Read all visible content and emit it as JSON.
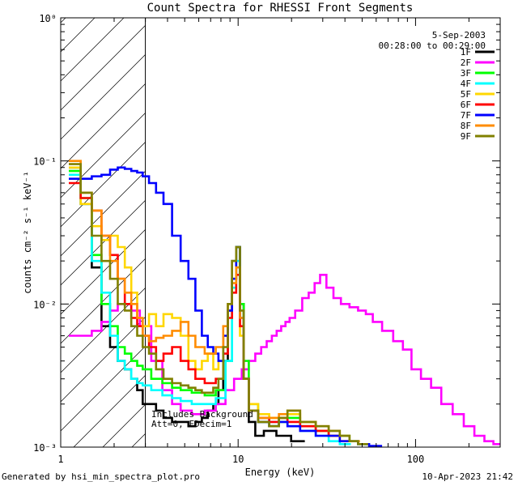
{
  "chart_data": {
    "type": "line",
    "title": "Count Spectra for RHESSI Front Segments",
    "xlabel": "Energy (keV)",
    "ylabel": "counts cm⁻² s⁻¹ keV⁻¹",
    "xscale": "log",
    "yscale": "log",
    "xlim": [
      1,
      300
    ],
    "ylim": [
      0.001,
      1
    ],
    "x_ticks": [
      {
        "value": 1,
        "label": "1"
      },
      {
        "value": 10,
        "label": "10"
      },
      {
        "value": 100,
        "label": "100"
      }
    ],
    "y_ticks": [
      {
        "value": 0.001,
        "label": "10⁻³"
      },
      {
        "value": 0.01,
        "label": "10⁻²"
      },
      {
        "value": 0.1,
        "label": "10⁻¹"
      },
      {
        "value": 1,
        "label": "10⁰"
      }
    ],
    "hatched_region": {
      "x_from": 1,
      "x_to": 3
    },
    "legend_header": [
      "5-Sep-2003",
      "00:28:00 to 00:29:00"
    ],
    "annotation": [
      "Includes Background",
      "Att=0, FDecim=1"
    ],
    "series": [
      {
        "name": "1F",
        "color": "#000000",
        "x": [
          1.2,
          1.4,
          1.6,
          1.8,
          2.0,
          2.2,
          2.4,
          2.6,
          2.8,
          3.0,
          3.3,
          3.6,
          4.0,
          4.5,
          5.0,
          5.5,
          6.0,
          6.5,
          7.0,
          7.5,
          8.0,
          8.5,
          9.0,
          9.5,
          10.0,
          10.5,
          11.0,
          12.0,
          13.0,
          15.0,
          18.0,
          22.0
        ],
        "y": [
          0.09,
          0.05,
          0.018,
          0.007,
          0.005,
          0.004,
          0.0035,
          0.003,
          0.0025,
          0.002,
          0.002,
          0.0018,
          0.0016,
          0.0015,
          0.0015,
          0.0014,
          0.0015,
          0.0016,
          0.0018,
          0.002,
          0.0025,
          0.004,
          0.009,
          0.02,
          0.025,
          0.01,
          0.003,
          0.0015,
          0.0012,
          0.0013,
          0.0012,
          0.0011
        ]
      },
      {
        "name": "2F",
        "color": "#ff00ff",
        "x": [
          1.2,
          1.4,
          1.6,
          1.8,
          2.0,
          2.2,
          2.4,
          2.6,
          3.0,
          3.5,
          4.0,
          4.5,
          5.0,
          6.0,
          7.0,
          8.0,
          9.0,
          10.0,
          11.0,
          12.0,
          13.0,
          14.0,
          15.0,
          16.0,
          17.0,
          18.0,
          19.0,
          20.0,
          22.0,
          24.0,
          26.0,
          28.0,
          30.0,
          33.0,
          36.0,
          40.0,
          45.0,
          50.0,
          55.0,
          60.0,
          70.0,
          80.0,
          90.0,
          100.0,
          115.0,
          130.0,
          150.0,
          175.0,
          200.0,
          230.0,
          260.0,
          290.0
        ],
        "y": [
          0.006,
          0.006,
          0.0065,
          0.0075,
          0.009,
          0.01,
          0.01,
          0.009,
          0.007,
          0.004,
          0.0025,
          0.002,
          0.0018,
          0.0017,
          0.0018,
          0.002,
          0.0025,
          0.003,
          0.0035,
          0.004,
          0.0045,
          0.005,
          0.0055,
          0.006,
          0.0065,
          0.007,
          0.0075,
          0.008,
          0.009,
          0.011,
          0.012,
          0.014,
          0.016,
          0.013,
          0.011,
          0.01,
          0.0095,
          0.009,
          0.0085,
          0.0075,
          0.0065,
          0.0055,
          0.0048,
          0.0035,
          0.003,
          0.0026,
          0.002,
          0.0017,
          0.0014,
          0.0012,
          0.0011,
          0.00105
        ]
      },
      {
        "name": "3F",
        "color": "#00ff00",
        "x": [
          1.2,
          1.4,
          1.6,
          1.8,
          2.0,
          2.2,
          2.4,
          2.6,
          2.8,
          3.0,
          3.5,
          4.0,
          4.5,
          5.0,
          6.0,
          7.0,
          8.0,
          9.0,
          9.5,
          10.0,
          10.5,
          11.0,
          12.0,
          14.0,
          16.0,
          18.0,
          20.0,
          25.0,
          30.0,
          35.0,
          40.0,
          45.0,
          50.0
        ],
        "y": [
          0.085,
          0.055,
          0.022,
          0.01,
          0.007,
          0.005,
          0.0045,
          0.004,
          0.0037,
          0.0035,
          0.003,
          0.0028,
          0.0026,
          0.0025,
          0.0024,
          0.0023,
          0.0025,
          0.004,
          0.015,
          0.025,
          0.01,
          0.004,
          0.002,
          0.0015,
          0.0014,
          0.0015,
          0.0016,
          0.0014,
          0.0013,
          0.0012,
          0.0012,
          0.0011,
          0.00105
        ]
      },
      {
        "name": "4F",
        "color": "#00ffff",
        "x": [
          1.2,
          1.4,
          1.6,
          1.8,
          2.0,
          2.2,
          2.4,
          2.6,
          2.8,
          3.0,
          3.5,
          4.0,
          4.5,
          5.0,
          6.0,
          7.0,
          8.0,
          9.0,
          9.5,
          10.0,
          10.5,
          11.0,
          12.0,
          14.0,
          16.0,
          18.0,
          20.0,
          25.0,
          30.0,
          35.0,
          40.0
        ],
        "y": [
          0.08,
          0.05,
          0.02,
          0.012,
          0.006,
          0.004,
          0.0035,
          0.003,
          0.0028,
          0.0027,
          0.0025,
          0.0023,
          0.0022,
          0.0021,
          0.002,
          0.002,
          0.0022,
          0.004,
          0.013,
          0.02,
          0.008,
          0.003,
          0.0018,
          0.0016,
          0.0015,
          0.0016,
          0.0014,
          0.0013,
          0.0012,
          0.0011,
          0.00105
        ]
      },
      {
        "name": "5F",
        "color": "#ffd700",
        "x": [
          1.2,
          1.4,
          1.6,
          1.8,
          2.0,
          2.2,
          2.4,
          2.6,
          2.8,
          3.0,
          3.3,
          3.6,
          4.0,
          4.5,
          5.0,
          5.5,
          6.0,
          6.5,
          7.0,
          7.5,
          8.0,
          8.5,
          9.0,
          9.5,
          10.0,
          10.5,
          11.0,
          12.0,
          14.0,
          16.0,
          18.0,
          20.0,
          25.0,
          30.0,
          35.0,
          40.0
        ],
        "y": [
          0.09,
          0.05,
          0.035,
          0.028,
          0.03,
          0.025,
          0.018,
          0.012,
          0.008,
          0.007,
          0.0085,
          0.007,
          0.0085,
          0.008,
          0.006,
          0.004,
          0.0035,
          0.004,
          0.0045,
          0.0035,
          0.004,
          0.006,
          0.009,
          0.015,
          0.018,
          0.006,
          0.003,
          0.002,
          0.0017,
          0.0016,
          0.0016,
          0.0017,
          0.0015,
          0.0013,
          0.0012,
          0.0011
        ]
      },
      {
        "name": "6F",
        "color": "#ff0000",
        "x": [
          1.2,
          1.4,
          1.6,
          1.8,
          2.0,
          2.2,
          2.4,
          2.6,
          2.8,
          3.0,
          3.3,
          3.6,
          4.0,
          4.5,
          5.0,
          5.5,
          6.0,
          7.0,
          8.0,
          8.5,
          9.0,
          9.5,
          10.0,
          10.5,
          11.0,
          12.0,
          14.0,
          16.0,
          18.0,
          20.0,
          25.0,
          30.0,
          35.0,
          40.0
        ],
        "y": [
          0.07,
          0.055,
          0.045,
          0.03,
          0.022,
          0.015,
          0.01,
          0.008,
          0.007,
          0.006,
          0.005,
          0.004,
          0.0045,
          0.005,
          0.004,
          0.0035,
          0.003,
          0.0028,
          0.003,
          0.0045,
          0.008,
          0.012,
          0.016,
          0.007,
          0.003,
          0.0018,
          0.0016,
          0.0015,
          0.0016,
          0.0015,
          0.0014,
          0.0013,
          0.0012,
          0.0011
        ]
      },
      {
        "name": "7F",
        "color": "#0000ff",
        "x": [
          1.2,
          1.4,
          1.6,
          1.8,
          2.0,
          2.2,
          2.4,
          2.6,
          2.8,
          3.0,
          3.3,
          3.6,
          4.0,
          4.5,
          5.0,
          5.5,
          6.0,
          6.5,
          7.0,
          7.5,
          8.0,
          8.5,
          9.0,
          9.5,
          10.0,
          10.5,
          11.0,
          12.0,
          14.0,
          16.0,
          18.0,
          20.0,
          25.0,
          30.0,
          35.0,
          40.0,
          45.0,
          50.0,
          60.0
        ],
        "y": [
          0.075,
          0.075,
          0.078,
          0.08,
          0.087,
          0.09,
          0.088,
          0.085,
          0.083,
          0.078,
          0.07,
          0.06,
          0.05,
          0.03,
          0.02,
          0.015,
          0.009,
          0.006,
          0.005,
          0.0045,
          0.004,
          0.006,
          0.009,
          0.015,
          0.025,
          0.008,
          0.003,
          0.0018,
          0.0015,
          0.0014,
          0.0015,
          0.0014,
          0.0013,
          0.0012,
          0.0012,
          0.0011,
          0.0011,
          0.00105,
          0.00102
        ]
      },
      {
        "name": "8F",
        "color": "#ff8c00",
        "x": [
          1.2,
          1.4,
          1.6,
          1.8,
          2.0,
          2.2,
          2.4,
          2.6,
          2.8,
          3.0,
          3.3,
          3.6,
          4.0,
          4.5,
          5.0,
          5.5,
          6.0,
          7.0,
          8.0,
          8.5,
          9.0,
          9.5,
          10.0,
          10.5,
          11.0,
          12.0,
          14.0,
          16.0,
          18.0,
          20.0,
          25.0,
          30.0,
          35.0,
          40.0,
          45.0
        ],
        "y": [
          0.1,
          0.06,
          0.045,
          0.03,
          0.02,
          0.015,
          0.012,
          0.01,
          0.008,
          0.006,
          0.0055,
          0.0058,
          0.006,
          0.0065,
          0.0075,
          0.006,
          0.005,
          0.0045,
          0.005,
          0.007,
          0.01,
          0.014,
          0.018,
          0.008,
          0.003,
          0.0018,
          0.0016,
          0.0016,
          0.0017,
          0.0018,
          0.0015,
          0.0014,
          0.0013,
          0.0012,
          0.0011
        ]
      },
      {
        "name": "9F",
        "color": "#808000",
        "x": [
          1.2,
          1.4,
          1.6,
          1.8,
          2.0,
          2.2,
          2.4,
          2.6,
          2.8,
          3.0,
          3.3,
          3.6,
          4.0,
          4.5,
          5.0,
          5.5,
          6.0,
          6.5,
          7.0,
          7.5,
          8.0,
          8.5,
          9.0,
          9.5,
          10.0,
          10.5,
          11.0,
          12.0,
          14.0,
          16.0,
          18.0,
          20.0,
          25.0,
          30.0,
          35.0,
          40.0,
          45.0,
          50.0
        ],
        "y": [
          0.095,
          0.06,
          0.03,
          0.02,
          0.015,
          0.01,
          0.009,
          0.007,
          0.006,
          0.005,
          0.0045,
          0.0035,
          0.003,
          0.0028,
          0.0027,
          0.0026,
          0.0025,
          0.0024,
          0.0024,
          0.0026,
          0.003,
          0.005,
          0.01,
          0.02,
          0.025,
          0.009,
          0.003,
          0.0018,
          0.0015,
          0.0014,
          0.0016,
          0.0018,
          0.0015,
          0.0014,
          0.0013,
          0.0012,
          0.0011,
          0.00105
        ]
      }
    ]
  },
  "footer": {
    "generator": "Generated by hsi_min_spectra_plot.pro",
    "timestamp": "10-Apr-2023 21:42"
  }
}
